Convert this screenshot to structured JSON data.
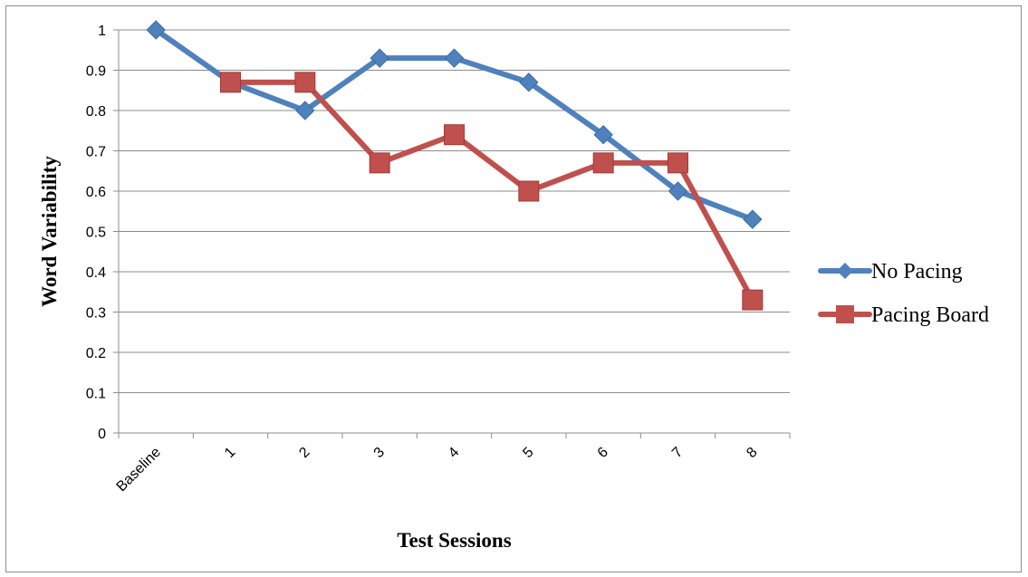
{
  "chart_data": {
    "type": "line",
    "title": "",
    "xlabel": "Test Sessions",
    "ylabel": "Word Variability",
    "categories": [
      "Baseline",
      "1",
      "2",
      "3",
      "4",
      "5",
      "6",
      "7",
      "8"
    ],
    "ylim": [
      0,
      1
    ],
    "yticks": [
      "0",
      "0.1",
      "0.2",
      "0.3",
      "0.4",
      "0.5",
      "0.6",
      "0.7",
      "0.8",
      "0.9",
      "1"
    ],
    "grid": true,
    "legend_position": "right",
    "series": [
      {
        "name": "No Pacing",
        "color": "#4f81bd",
        "marker": "diamond",
        "values": [
          1.0,
          0.87,
          0.8,
          0.93,
          0.93,
          0.87,
          0.74,
          0.6,
          0.53
        ]
      },
      {
        "name": "Pacing Board",
        "color": "#c0504d",
        "marker": "square",
        "values": [
          null,
          0.87,
          0.87,
          0.67,
          0.74,
          0.6,
          0.67,
          0.67,
          0.33
        ]
      }
    ]
  }
}
